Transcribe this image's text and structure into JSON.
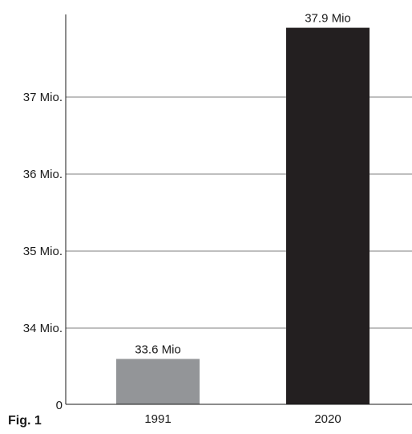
{
  "chart_data": {
    "type": "bar",
    "title": "",
    "xlabel": "",
    "ylabel": "",
    "categories": [
      "1991",
      "2020"
    ],
    "values": [
      33.6,
      37.9
    ],
    "value_labels": [
      "33.6 Mio",
      "37.9 Mio"
    ],
    "bar_colors": [
      "#939598",
      "#231f20"
    ],
    "axis_break": true,
    "baseline_label": "0",
    "y_ticks": [
      {
        "value": 34,
        "label": "34 Mio."
      },
      {
        "value": 35,
        "label": "35 Mio."
      },
      {
        "value": 36,
        "label": "36 Mio."
      },
      {
        "value": 37,
        "label": "37 Mio."
      }
    ],
    "ylim": [
      33.0,
      38.0
    ],
    "grid": true,
    "legend": "none"
  },
  "figure": {
    "caption_label": "Fig. 1"
  }
}
